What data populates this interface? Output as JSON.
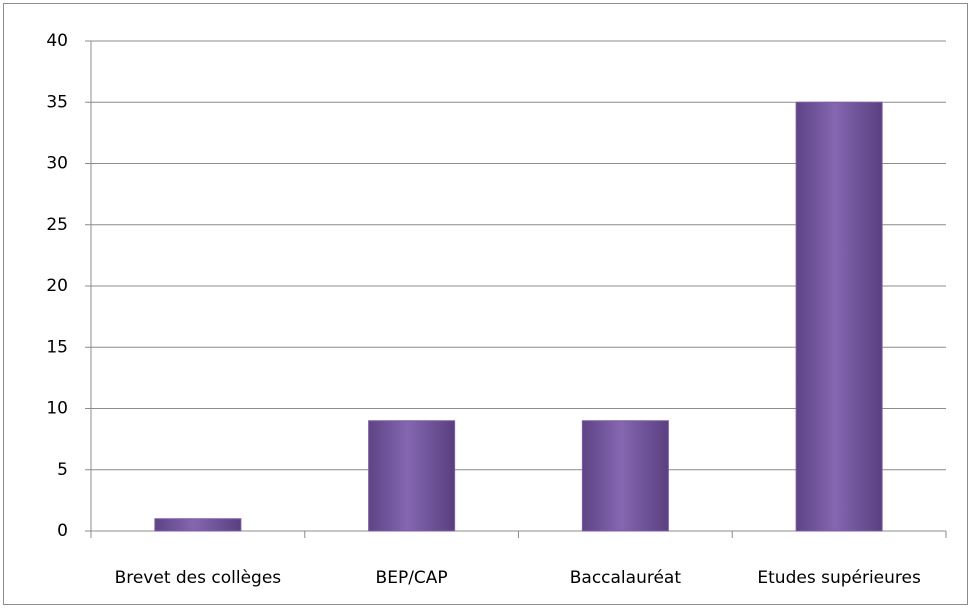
{
  "chart_data": {
    "type": "bar",
    "categories": [
      "Brevet des collèges",
      "BEP/CAP",
      "Baccalauréat",
      "Etudes supérieures"
    ],
    "values": [
      1,
      9,
      9,
      35
    ],
    "color": "#7d5ba6",
    "ylim": [
      0,
      40
    ],
    "yticks": [
      0,
      5,
      10,
      15,
      20,
      25,
      30,
      35,
      40
    ],
    "grid": true
  }
}
